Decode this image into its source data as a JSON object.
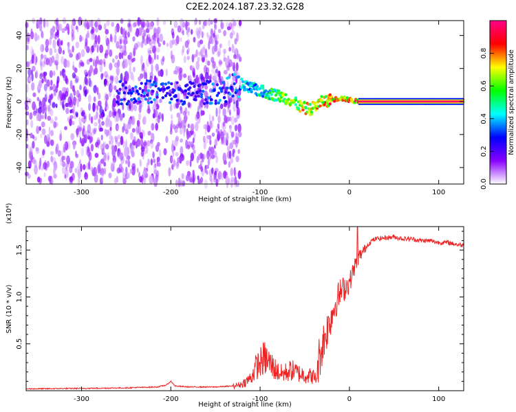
{
  "figure": {
    "title": "C2E2.2024.187.23.32.G28"
  },
  "chart_data": [
    {
      "type": "heatmap",
      "title": "C2E2.2024.187.23.32.G28",
      "xlabel": "Height of straight line (km)",
      "ylabel": "Frequency (Hz)",
      "xlim": [
        -362,
        128
      ],
      "ylim": [
        -50,
        49
      ],
      "x_ticks": [
        -300,
        -200,
        -100,
        0,
        100
      ],
      "x_tick_labels": [
        "-300",
        "-200",
        "-100",
        "0",
        "100"
      ],
      "y_ticks": [
        -40,
        -20,
        0,
        20,
        40
      ],
      "y_tick_labels": [
        "-40",
        "-20",
        "0",
        "20",
        "40"
      ],
      "colorbar": {
        "label": "Normalized spectral amplitude",
        "range": [
          0,
          1
        ],
        "ticks": [
          0.0,
          0.2,
          0.4,
          0.6,
          0.8
        ],
        "tick_labels": [
          "0.0",
          "0.2",
          "0.4",
          "0.6",
          "0.8"
        ],
        "colors": [
          "#ffffff",
          "#8800ff",
          "#0000ff",
          "#00ffff",
          "#00ff00",
          "#ffff00",
          "#ff0000",
          "#ff0088"
        ]
      },
      "ridge": {
        "x": [
          -260,
          -220,
          -180,
          -140,
          -130,
          -110,
          -90,
          -70,
          -55,
          -45,
          -38,
          -30,
          -20,
          -10,
          0,
          10,
          30,
          60,
          128
        ],
        "y": [
          5,
          6,
          5,
          6,
          10,
          8,
          5,
          2,
          -3,
          -5,
          -3,
          0,
          1,
          2,
          1,
          0,
          0,
          0,
          0
        ],
        "amplitude": [
          0.32,
          0.38,
          0.3,
          0.4,
          0.42,
          0.5,
          0.6,
          0.72,
          0.78,
          0.86,
          0.8,
          0.82,
          0.88,
          0.9,
          0.92,
          0.95,
          0.96,
          0.97,
          0.98
        ]
      },
      "noise_region_x": [
        -362,
        -130
      ],
      "noise_gap_x": [
        -212,
        -200
      ]
    },
    {
      "type": "line",
      "title": "",
      "xlabel": "Height of straight line (km)",
      "ylabel": "SNR (10 * v/v)",
      "y_multiplier_label": "(x10⁴)",
      "xlim": [
        -362,
        128
      ],
      "ylim": [
        0,
        1.75
      ],
      "x_ticks": [
        -300,
        -200,
        -100,
        0,
        100
      ],
      "x_tick_labels": [
        "-300",
        "-200",
        "-100",
        "0",
        "100"
      ],
      "y_ticks": [
        0.5,
        1.0,
        1.5
      ],
      "y_tick_labels": [
        "0.5",
        "1.0",
        "1.5"
      ],
      "line_color": "#ee2222",
      "series": [
        {
          "x": [
            -362,
            -300,
            -250,
            -215,
            -205,
            -200,
            -195,
            -180,
            -150,
            -130,
            -120,
            -110,
            -105,
            -100,
            -95,
            -90,
            -85,
            -80,
            -75,
            -70,
            -65,
            -60,
            -55,
            -50,
            -45,
            -40,
            -37,
            -35,
            -30,
            -25,
            -20,
            -15,
            -10,
            -5,
            0,
            5,
            10,
            15,
            20,
            25,
            30,
            40,
            50,
            60,
            70,
            80,
            90,
            100,
            110,
            120,
            128
          ],
          "y": [
            0.02,
            0.025,
            0.03,
            0.04,
            0.06,
            0.1,
            0.05,
            0.04,
            0.04,
            0.05,
            0.07,
            0.14,
            0.25,
            0.3,
            0.35,
            0.3,
            0.25,
            0.2,
            0.18,
            0.2,
            0.22,
            0.2,
            0.18,
            0.17,
            0.16,
            0.15,
            0.12,
            0.3,
            0.5,
            0.65,
            0.8,
            0.95,
            1.05,
            1.1,
            1.15,
            1.3,
            1.42,
            1.48,
            1.55,
            1.6,
            1.62,
            1.63,
            1.64,
            1.62,
            1.62,
            1.6,
            1.6,
            1.58,
            1.58,
            1.56,
            1.55
          ]
        }
      ]
    }
  ]
}
